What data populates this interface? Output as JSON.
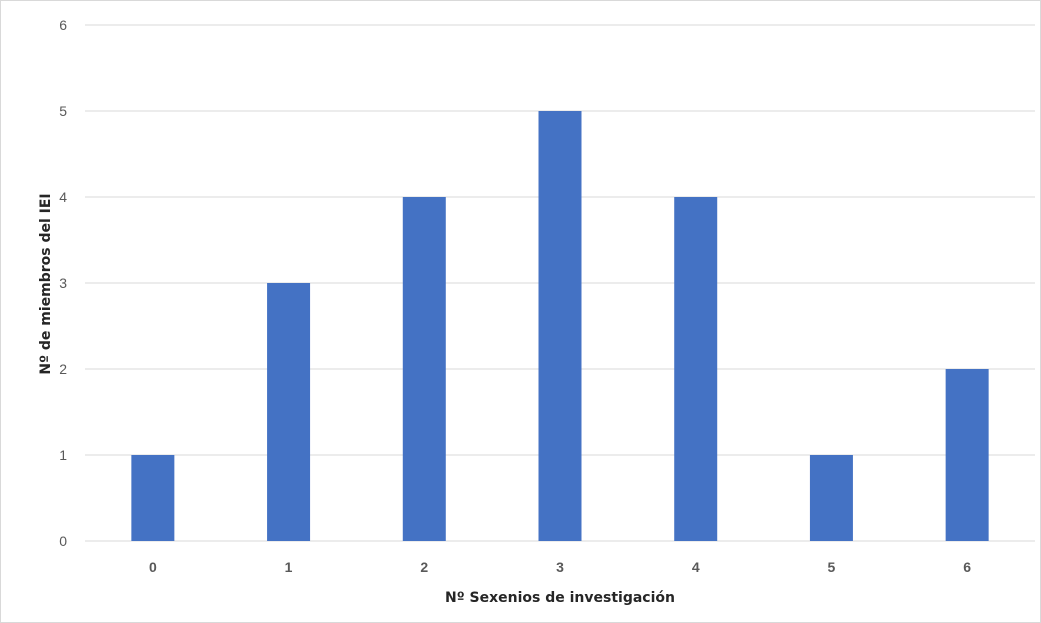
{
  "chart_data": {
    "type": "bar",
    "title": "",
    "xlabel": "Nº Sexenios de investigación",
    "ylabel": "Nº de miembros del IEI",
    "categories": [
      "0",
      "1",
      "2",
      "3",
      "4",
      "5",
      "6"
    ],
    "values": [
      1,
      3,
      4,
      5,
      4,
      1,
      2
    ],
    "ylim": [
      0,
      6
    ],
    "yticks": [
      "0",
      "1",
      "2",
      "3",
      "4",
      "5",
      "6"
    ],
    "grid": true,
    "legend": "none",
    "bar_color": "#4472C4",
    "grid_color": "#d9d9d9"
  }
}
